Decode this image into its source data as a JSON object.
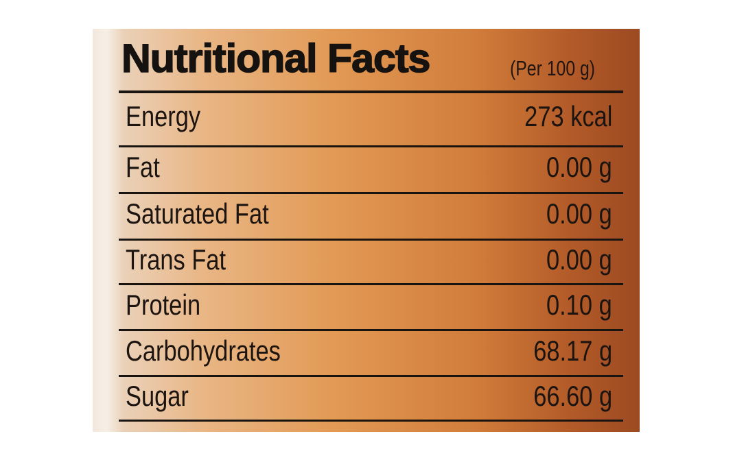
{
  "title": "Nutritional Facts",
  "subtitle": "(Per 100 g)",
  "table": {
    "rows": [
      [
        "Energy",
        "273 kcal"
      ],
      [
        "Fat",
        "0.00 g"
      ],
      [
        "Saturated Fat",
        "0.00 g"
      ],
      [
        "Trans Fat",
        "0.00 g"
      ],
      [
        "Protein",
        "0.10 g"
      ],
      [
        "Carbohydrates",
        "68.17 g"
      ],
      [
        "Sugar",
        "66.60 g"
      ]
    ]
  }
}
